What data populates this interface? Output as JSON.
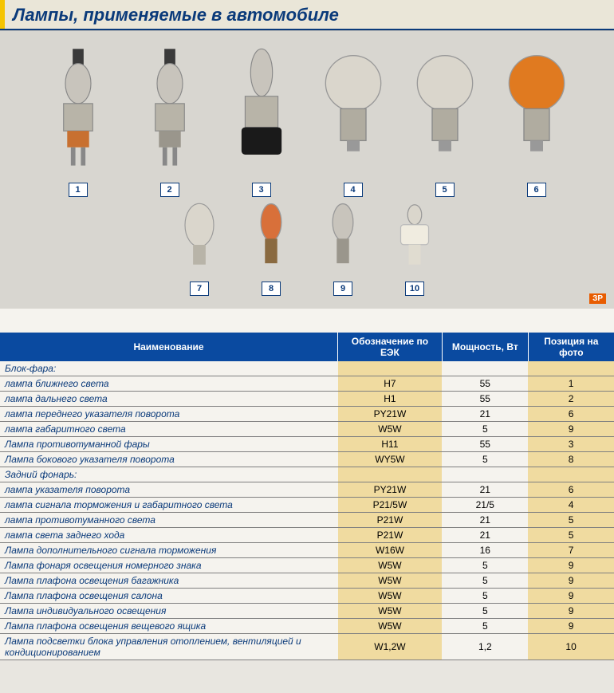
{
  "title": "Лампы, применяемые в автомобиле",
  "badge": "ЗР",
  "bulbs_row1": [
    {
      "n": "1",
      "body": "#c8c4bc",
      "base": "#c87030",
      "type": "h7"
    },
    {
      "n": "2",
      "body": "#c8c4bc",
      "base": "#9a968c",
      "type": "h1"
    },
    {
      "n": "3",
      "body": "#c8c4bc",
      "base": "#1a1a1a",
      "type": "h11"
    },
    {
      "n": "4",
      "body": "#dad6cc",
      "base": "#b0aca0",
      "type": "round"
    },
    {
      "n": "5",
      "body": "#dad6cc",
      "base": "#b0aca0",
      "type": "round"
    },
    {
      "n": "6",
      "body": "#e07a20",
      "base": "#b0aca0",
      "type": "round"
    }
  ],
  "bulbs_row2": [
    {
      "n": "7",
      "body": "#dad6cc",
      "base": "#b8b4a8",
      "type": "wedge-big"
    },
    {
      "n": "8",
      "body": "#d8703a",
      "base": "#8a6a40",
      "type": "wedge"
    },
    {
      "n": "9",
      "body": "#c8c4bc",
      "base": "#9a968c",
      "type": "wedge"
    },
    {
      "n": "10",
      "body": "#f0ece0",
      "base": "#e0dcd0",
      "type": "socket"
    }
  ],
  "columns": [
    "Наименование",
    "Обозначение по ЕЭК",
    "Мощность, Вт",
    "Позиция на фото"
  ],
  "rows": [
    {
      "name": "Блок-фара:",
      "code": "",
      "power": "",
      "pos": "",
      "section": true
    },
    {
      "name": "лампа ближнего света",
      "code": "H7",
      "power": "55",
      "pos": "1",
      "indent": true
    },
    {
      "name": "лампа дальнего света",
      "code": "H1",
      "power": "55",
      "pos": "2",
      "indent": true
    },
    {
      "name": "лампа переднего указателя поворота",
      "code": "PY21W",
      "power": "21",
      "pos": "6",
      "indent": true
    },
    {
      "name": "лампа габаритного света",
      "code": "W5W",
      "power": "5",
      "pos": "9",
      "indent": true,
      "sep": true
    },
    {
      "name": "Лампа противотуманной фары",
      "code": "H11",
      "power": "55",
      "pos": "3",
      "sep": true
    },
    {
      "name": "Лампа бокового указателя поворота",
      "code": "WY5W",
      "power": "5",
      "pos": "8",
      "sep": true
    },
    {
      "name": "Задний фонарь:",
      "code": "",
      "power": "",
      "pos": "",
      "section": true
    },
    {
      "name": "лампа указателя поворота",
      "code": "PY21W",
      "power": "21",
      "pos": "6",
      "indent": true
    },
    {
      "name": "лампа сигнала торможения и габаритного света",
      "code": "P21/5W",
      "power": "21/5",
      "pos": "4",
      "indent": true
    },
    {
      "name": "лампа противотуманного света",
      "code": "P21W",
      "power": "21",
      "pos": "5",
      "indent": true
    },
    {
      "name": "лампа света заднего хода",
      "code": "P21W",
      "power": "21",
      "pos": "5",
      "indent": true,
      "sep": true
    },
    {
      "name": "Лампа дополнительного сигнала торможения",
      "code": "W16W",
      "power": "16",
      "pos": "7",
      "sep": true
    },
    {
      "name": "Лампа фонаря освещения номерного знака",
      "code": "W5W",
      "power": "5",
      "pos": "9",
      "sep": true
    },
    {
      "name": "Лампа плафона освещения багажника",
      "code": "W5W",
      "power": "5",
      "pos": "9",
      "sep": true
    },
    {
      "name": "Лампа плафона освещения салона",
      "code": "W5W",
      "power": "5",
      "pos": "9",
      "sep": true
    },
    {
      "name": "Лампа индивидуального освещения",
      "code": "W5W",
      "power": "5",
      "pos": "9",
      "sep": true
    },
    {
      "name": "Лампа плафона освещения вещевого ящика",
      "code": "W5W",
      "power": "5",
      "pos": "9",
      "sep": true
    },
    {
      "name": "Лампа подсветки блока управления отоплением, вентиляцией и кондиционированием",
      "code": "W1,2W",
      "power": "1,2",
      "pos": "10",
      "sep": true
    }
  ]
}
